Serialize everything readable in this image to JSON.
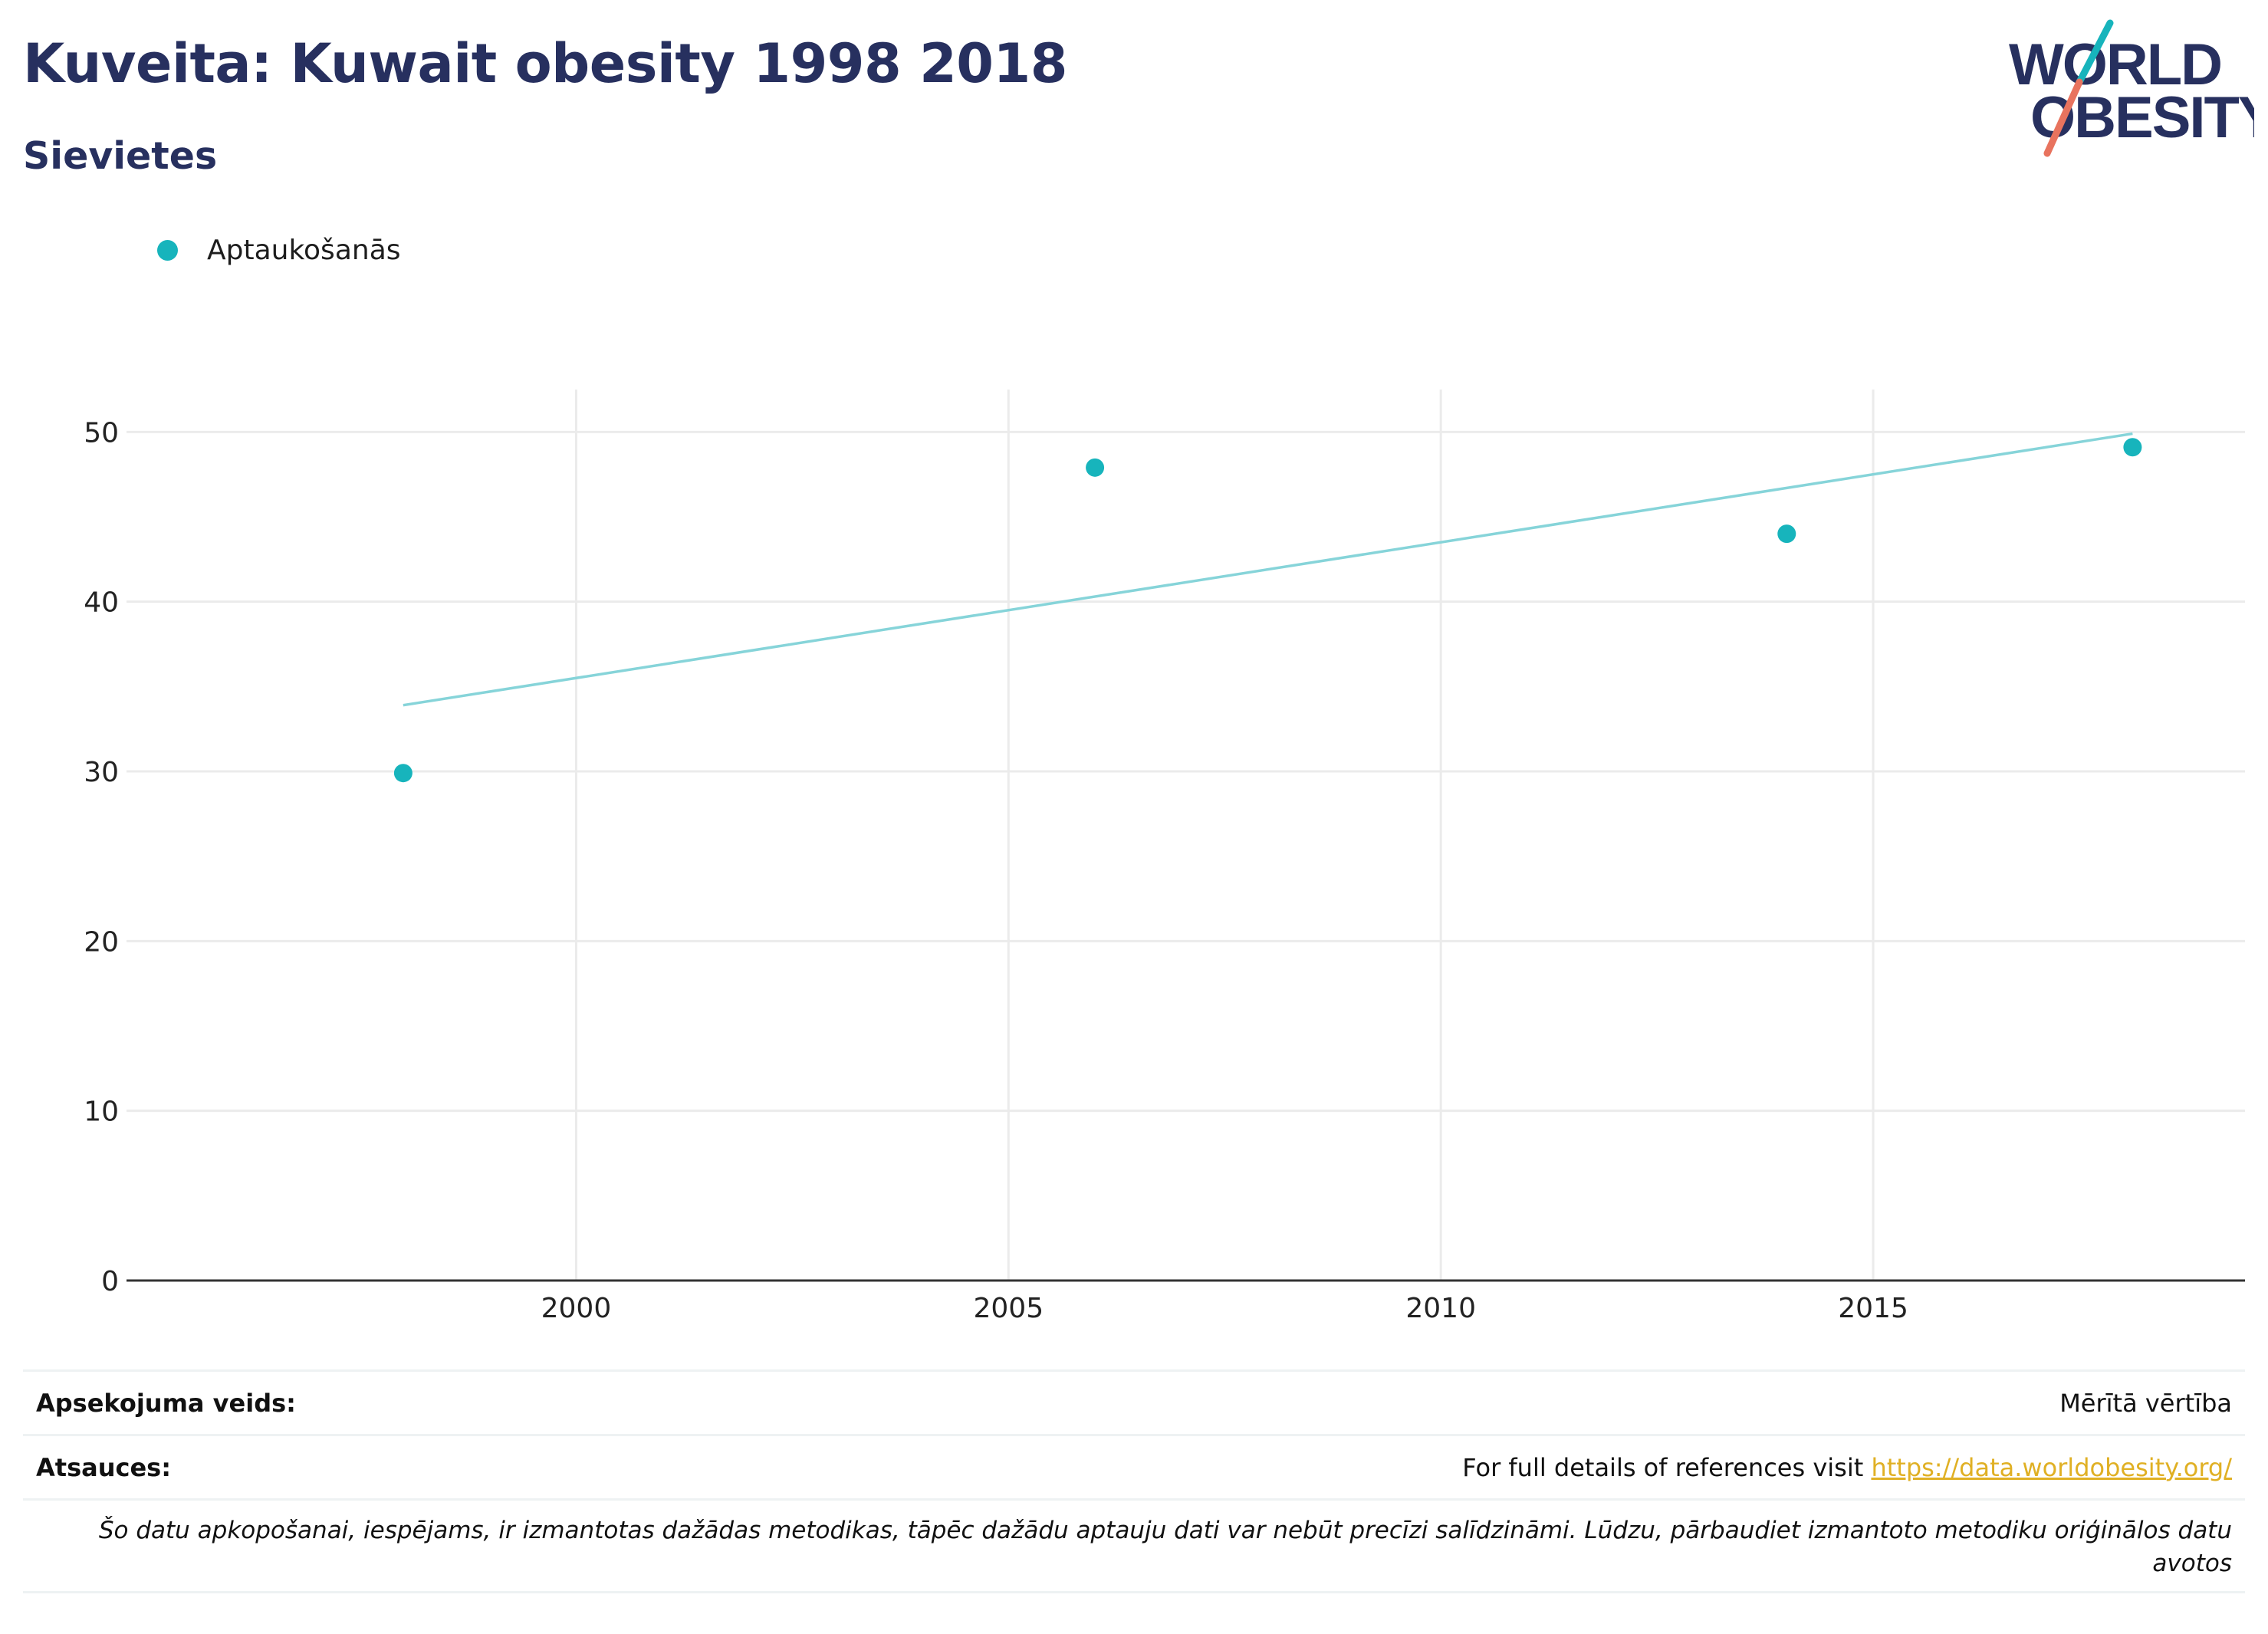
{
  "header": {
    "title": "Kuveita: Kuwait obesity 1998 2018",
    "subtitle": "Sievietes"
  },
  "logo": {
    "line1": "WORLD",
    "line2": "OBESITY",
    "colors": {
      "text": "#27305f",
      "slash_top": "#17b4bc",
      "slash_bottom": "#e8735e"
    }
  },
  "legend": {
    "label": "Aptaukošanās",
    "color": "#17b4bc"
  },
  "chart_data": {
    "type": "scatter",
    "series": [
      {
        "name": "Aptaukošanās",
        "x": [
          1998,
          2006,
          2014,
          2018
        ],
        "y": [
          29.9,
          47.9,
          44.0,
          49.1
        ],
        "color": "#17b4bc"
      }
    ],
    "trendline": {
      "x": [
        1998,
        2018
      ],
      "y": [
        33.9,
        49.9
      ],
      "color": "#86d4d9"
    },
    "xticks": [
      2000,
      2005,
      2010,
      2015
    ],
    "yticks": [
      0,
      10,
      20,
      30,
      40,
      50
    ],
    "xlim": [
      1994.8,
      2019.3
    ],
    "ylim": [
      0,
      52.5
    ],
    "grid": true,
    "legend_position": "top-left"
  },
  "info": {
    "survey_type_label": "Apsekojuma veids:",
    "survey_type_value": "Mērītā vērtība",
    "references_label": "Atsauces:",
    "references_text": "For full details of references visit",
    "references_link": "https://data.worldobesity.org/",
    "note": "Šo datu apkopošanai, iespējams, ir izmantotas dažādas metodikas, tāpēc dažādu aptauju dati var nebūt precīzi salīdzināmi. Lūdzu, pārbaudiet izmantoto metodiku oriģinālos datu avotos"
  }
}
